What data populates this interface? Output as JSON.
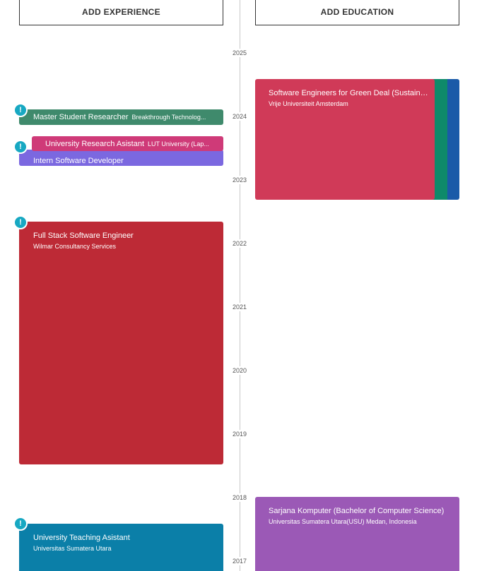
{
  "header": {
    "add_experience": "ADD EXPERIENCE",
    "add_education": "ADD EDUCATION"
  },
  "timeline": {
    "years": [
      "2025",
      "2024",
      "2023",
      "2022",
      "2021",
      "2020",
      "2019",
      "2018",
      "2017"
    ]
  },
  "experience": [
    {
      "title": "Master Student Researcher",
      "org": "Breakthrough Technolog...",
      "color": "#3f8a6c"
    },
    {
      "title": "University Research Asistant",
      "org": "LUT University (Lap...",
      "color": "#cf3a78"
    },
    {
      "title": "Intern Software Developer",
      "org": "",
      "color": "#7b68e0"
    },
    {
      "title": "Full Stack Software Engineer",
      "org": "Wilmar Consultancy Services",
      "color": "#bd2a36"
    },
    {
      "title": "University Teaching Asistant",
      "org": "Universitas Sumatera Utara",
      "color": "#0b7fa8"
    }
  ],
  "education": [
    {
      "title": "Software Engineers for Green Deal (Sustaina...",
      "org": "Vrije Universiteit Amsterdam",
      "color": "#d03a58"
    },
    {
      "title": "Sarjana Komputer (Bachelor of Computer Science)",
      "org": "Universitas Sumatera Utara(USU) Medan, Indonesia",
      "color": "#9b59b6"
    }
  ],
  "education_stripes": [
    "#0e8a6a",
    "#1a5aa8"
  ],
  "alert_icon_glyph": "!",
  "colors": {
    "alert": "#17a8c2",
    "axis": "#c8c8c8"
  }
}
